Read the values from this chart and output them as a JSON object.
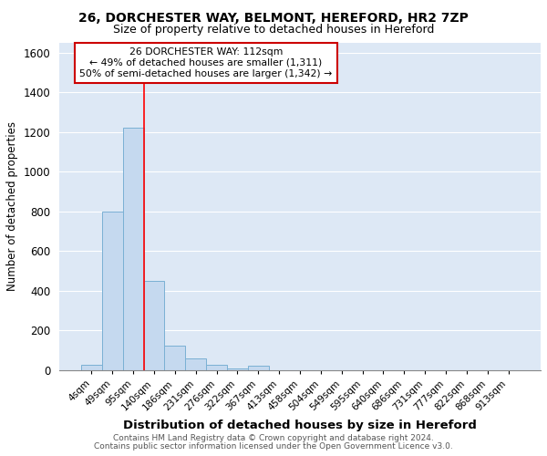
{
  "title1": "26, DORCHESTER WAY, BELMONT, HEREFORD, HR2 7ZP",
  "title2": "Size of property relative to detached houses in Hereford",
  "xlabel": "Distribution of detached houses by size in Hereford",
  "ylabel": "Number of detached properties",
  "categories": [
    "4sqm",
    "49sqm",
    "95sqm",
    "140sqm",
    "186sqm",
    "231sqm",
    "276sqm",
    "322sqm",
    "367sqm",
    "413sqm",
    "458sqm",
    "504sqm",
    "549sqm",
    "595sqm",
    "640sqm",
    "686sqm",
    "731sqm",
    "777sqm",
    "822sqm",
    "868sqm",
    "913sqm"
  ],
  "values": [
    25,
    800,
    1220,
    450,
    125,
    60,
    25,
    10,
    20,
    0,
    0,
    0,
    0,
    0,
    0,
    0,
    0,
    0,
    0,
    0,
    0
  ],
  "bar_color": "#c5d9ef",
  "bar_edgecolor": "#7ab0d4",
  "red_line_x": 2.5,
  "annotation_text": "26 DORCHESTER WAY: 112sqm\n← 49% of detached houses are smaller (1,311)\n50% of semi-detached houses are larger (1,342) →",
  "annotation_box_color": "#ffffff",
  "annotation_box_edgecolor": "#cc0000",
  "ylim": [
    0,
    1650
  ],
  "yticks": [
    0,
    200,
    400,
    600,
    800,
    1000,
    1200,
    1400,
    1600
  ],
  "plot_bg": "#dde8f5",
  "grid_color": "#ffffff",
  "footer1": "Contains HM Land Registry data © Crown copyright and database right 2024.",
  "footer2": "Contains public sector information licensed under the Open Government Licence v3.0."
}
